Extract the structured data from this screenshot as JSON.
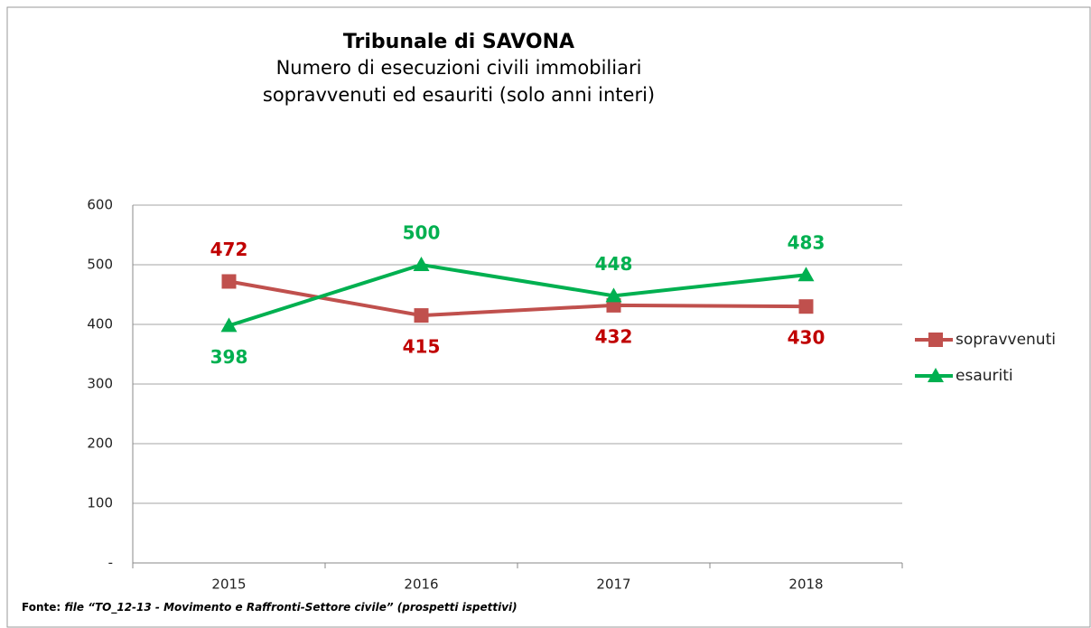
{
  "chart_data": {
    "type": "line",
    "title": "Tribunale di SAVONA",
    "subtitle": [
      "Numero di esecuzioni civili immobiliari",
      "sopravvenuti ed esauriti (solo anni interi)"
    ],
    "categories": [
      "2015",
      "2016",
      "2017",
      "2018"
    ],
    "series": [
      {
        "name": "sopravvenuti",
        "color": "#c0504d",
        "label_color": "#c00000",
        "marker": "square",
        "values": [
          472,
          415,
          432,
          430
        ]
      },
      {
        "name": "esauriti",
        "color": "#00b050",
        "label_color": "#00b050",
        "marker": "triangle",
        "values": [
          398,
          500,
          448,
          483
        ]
      }
    ],
    "ylim": [
      0,
      600
    ],
    "yticks": [
      {
        "value": 0,
        "label": "-"
      },
      100,
      200,
      300,
      400,
      500,
      600
    ],
    "grid": true,
    "legend": "right",
    "source": {
      "label": "Fonte:",
      "text": "file “TO_12-13 - Movimento e Raffronti-Settore civile” (prospetti ispettivi)"
    }
  }
}
